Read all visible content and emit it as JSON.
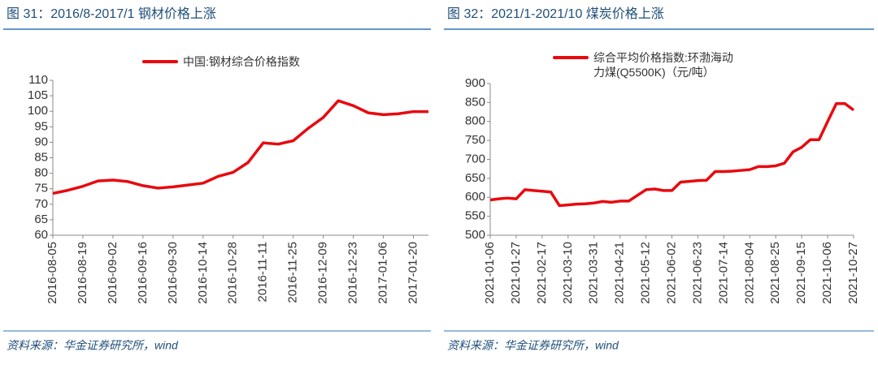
{
  "chart_data": [
    {
      "type": "line",
      "title": "图 31：2016/8-2017/1 钢材价格上涨",
      "source": "资料来源：华金证券研究所，wind",
      "categories": [
        "2016-08-05",
        null,
        "2016-08-19",
        null,
        "2016-09-02",
        null,
        "2016-09-16",
        null,
        "2016-09-30",
        null,
        "2016-10-14",
        null,
        "2016-10-28",
        null,
        "2016-11-11",
        null,
        "2016-11-25",
        null,
        "2016-12-09",
        null,
        "2016-12-23",
        null,
        "2017-01-06",
        null,
        "2017-01-20",
        null
      ],
      "series": [
        {
          "name": "中国:钢材综合价格指数",
          "color": "#e8090f",
          "values": [
            73.5,
            74.5,
            75.8,
            77.5,
            77.8,
            77.3,
            76.0,
            75.2,
            75.6,
            76.2,
            76.8,
            79.0,
            80.3,
            83.5,
            89.8,
            89.4,
            90.5,
            94.5,
            98.0,
            103.4,
            101.8,
            99.5,
            98.9,
            99.2,
            99.9,
            99.9
          ]
        }
      ],
      "ylim": [
        60,
        110
      ],
      "yticks": [
        60,
        65,
        70,
        75,
        80,
        85,
        90,
        95,
        100,
        105,
        110
      ]
    },
    {
      "type": "line",
      "title": "图 32：2021/1-2021/10 煤炭价格上涨",
      "source": "资料来源：华金证券研究所，wind",
      "categories": [
        "2021-01-06",
        null,
        null,
        "2021-01-27",
        null,
        null,
        "2021-02-17",
        null,
        null,
        "2021-03-10",
        null,
        null,
        "2021-03-31",
        null,
        null,
        "2021-04-21",
        null,
        null,
        "2021-05-12",
        null,
        null,
        "2021-06-02",
        null,
        null,
        "2021-06-23",
        null,
        null,
        "2021-07-14",
        null,
        null,
        "2021-08-04",
        null,
        null,
        "2021-08-25",
        null,
        null,
        "2021-09-15",
        null,
        null,
        "2021-10-06",
        null,
        null,
        "2021-10-27"
      ],
      "series": [
        {
          "name": "综合平均价格指数:环渤海动力煤(Q5500K)（元/吨）",
          "color": "#e8090f",
          "values": [
            593,
            596,
            598,
            596,
            620,
            618,
            616,
            614,
            578,
            580,
            582,
            583,
            585,
            589,
            587,
            590,
            590,
            605,
            620,
            622,
            618,
            618,
            640,
            642,
            644,
            645,
            668,
            668,
            669,
            671,
            673,
            681,
            681,
            683,
            690,
            720,
            732,
            752,
            752,
            800,
            847,
            847,
            830
          ]
        }
      ],
      "ylim": [
        500,
        900
      ],
      "yticks": [
        500,
        550,
        600,
        650,
        700,
        750,
        800,
        850,
        900
      ]
    }
  ]
}
